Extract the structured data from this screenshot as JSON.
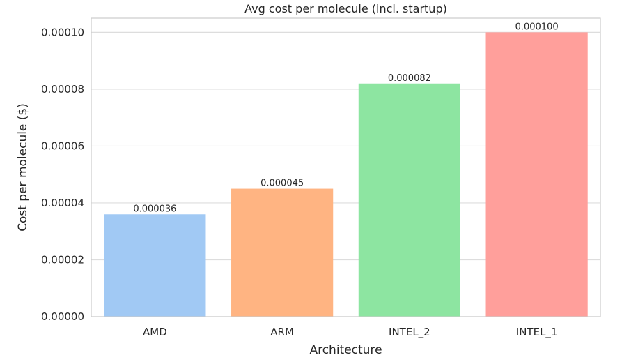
{
  "chart_data": {
    "type": "bar",
    "title": "Avg cost per molecule (incl. startup)",
    "xlabel": "Architecture",
    "ylabel": "Cost per molecule ($)",
    "categories": [
      "AMD",
      "ARM",
      "INTEL_2",
      "INTEL_1"
    ],
    "values": [
      3.6e-05,
      4.5e-05,
      8.2e-05,
      0.0001
    ],
    "value_labels": [
      "0.000036",
      "0.000045",
      "0.000082",
      "0.000100"
    ],
    "colors": [
      "#a1c9f4",
      "#ffb482",
      "#8de5a1",
      "#ff9f9b"
    ],
    "ylim": [
      0,
      0.000105
    ],
    "yticks": [
      0,
      2e-05,
      4e-05,
      6e-05,
      8e-05,
      0.0001
    ],
    "ytick_labels": [
      "0.00000",
      "0.00002",
      "0.00004",
      "0.00006",
      "0.00008",
      "0.00010"
    ],
    "grid": true
  }
}
